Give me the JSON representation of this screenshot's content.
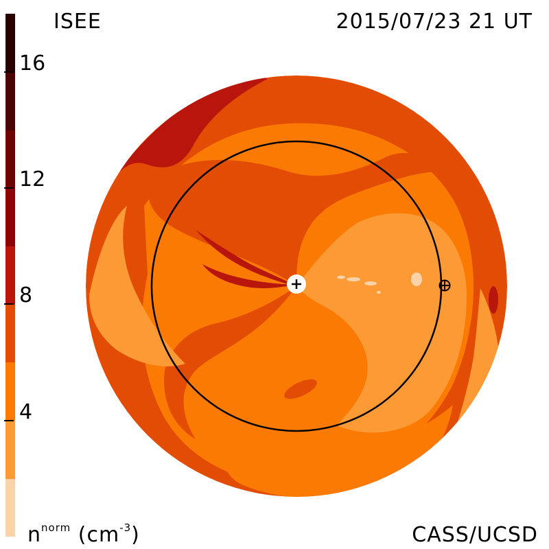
{
  "header": {
    "left_title": "ISEE",
    "right_title": "2015/07/23 21 UT"
  },
  "footer": {
    "credit": "CASS/UCSD",
    "unit_base": "n",
    "unit_sup": "norm",
    "unit_open": "(cm",
    "unit_exp": "-3",
    "unit_close": ")"
  },
  "chart_data": {
    "type": "heatmap",
    "colorbar": {
      "range": [
        0,
        18
      ],
      "ticks": [
        {
          "value": 4,
          "label": "4"
        },
        {
          "value": 8,
          "label": "8"
        },
        {
          "value": 12,
          "label": "12"
        },
        {
          "value": 16,
          "label": "16"
        }
      ],
      "bands": [
        {
          "from": 0,
          "to": 2,
          "color": "#FBD3AA"
        },
        {
          "from": 2,
          "to": 4,
          "color": "#FC9A36"
        },
        {
          "from": 4,
          "to": 6,
          "color": "#FB7A04"
        },
        {
          "from": 6,
          "to": 8,
          "color": "#E24C04"
        },
        {
          "from": 8,
          "to": 10,
          "color": "#B8160C"
        },
        {
          "from": 10,
          "to": 12,
          "color": "#8E0404"
        },
        {
          "from": 12,
          "to": 14,
          "color": "#6E0303"
        },
        {
          "from": 14,
          "to": 16,
          "color": "#4A0202"
        },
        {
          "from": 16,
          "to": 18,
          "color": "#2A0101"
        }
      ]
    },
    "markers": [
      {
        "name": "sun",
        "symbol": "+"
      },
      {
        "name": "earth",
        "symbol": "⊕"
      }
    ],
    "reference_circle": "Earth orbit"
  }
}
